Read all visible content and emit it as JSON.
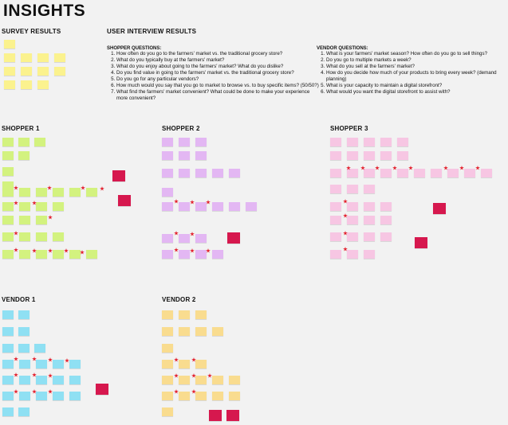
{
  "title": "INSIGHTS",
  "sections": {
    "survey": "SURVEY RESULTS",
    "interviews": "USER INTERVIEW RESULTS",
    "shopper1": "SHOPPER 1",
    "shopper2": "SHOPPER 2",
    "shopper3": "SHOPPER 3",
    "vendor1": "VENDOR 1",
    "vendor2": "VENDOR 2"
  },
  "shopper_questions": {
    "heading": "SHOPPER QUESTIONS:",
    "items": [
      "How often do you go to the farmers' market vs. the traditional grocery store?",
      "What do you typically buy at the farmers' market?",
      "What do you enjoy about going to the farmers' market? What do you dislike?",
      "Do you find value in going to the farmers' market vs. the traditional grocery store?",
      "Do you go for any particular vendors?",
      "How much would you say that you go to market to browse vs. to buy specific items? (50/50?)",
      "What find the farmers' market convenient? What could be done to make your experience more convenient?"
    ]
  },
  "vendor_questions": {
    "heading": "VENDOR QUESTIONS:",
    "items": [
      "What is your farmers' market season? How often do you go to sell things?",
      "Do you go to multiple markets a week?",
      "What do you sell at the farmers' market?",
      "How do you decide how much of your products to bring every week? (demand planning)",
      "What is your capacity to maintain a digital storefront?",
      "What would you want the digital storefront to assist with?"
    ]
  },
  "colors": {
    "survey": "#fbf28e",
    "shopper1": "#d3f27f",
    "shopper2": "#e3b7f3",
    "shopper3": "#f7c6e3",
    "vendor1": "#8fe0f3",
    "vendor2": "#f9dc8f",
    "insight": "#d6184e",
    "star": "#e3212e"
  }
}
